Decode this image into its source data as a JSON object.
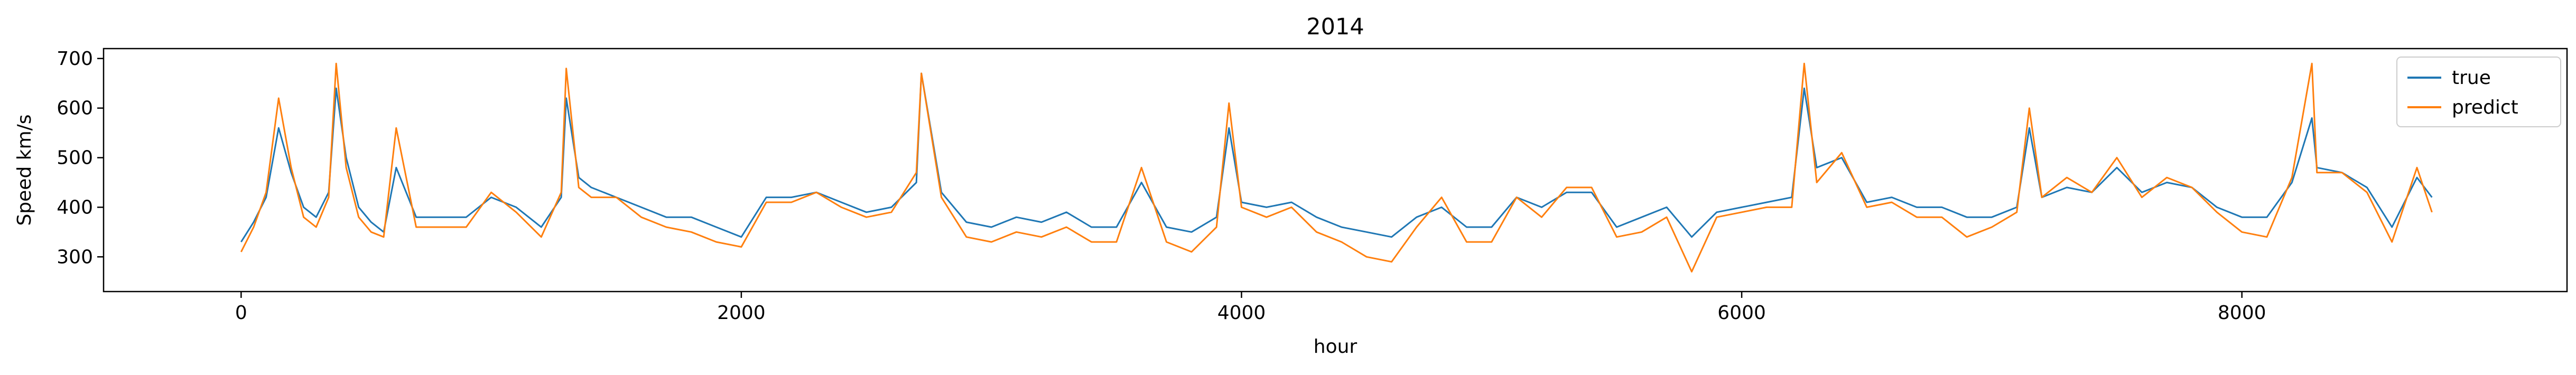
{
  "chart_data": {
    "type": "line",
    "title": "2014",
    "xlabel": "hour",
    "ylabel": "Speed km/s",
    "xlim": [
      -550,
      9300
    ],
    "ylim": [
      230,
      720
    ],
    "xticks": [
      0,
      2000,
      4000,
      6000,
      8000
    ],
    "xtick_labels": [
      "0",
      "2000",
      "4000",
      "6000",
      "8000"
    ],
    "yticks": [
      300,
      400,
      500,
      600,
      700
    ],
    "ytick_labels": [
      "300",
      "400",
      "500",
      "600",
      "700"
    ],
    "grid": false,
    "legend_position": "top-right",
    "series": [
      {
        "name": "true",
        "color": "#1f77b4",
        "x": [
          0,
          50,
          100,
          150,
          200,
          250,
          300,
          350,
          380,
          420,
          470,
          520,
          570,
          620,
          700,
          800,
          900,
          1000,
          1100,
          1200,
          1280,
          1300,
          1350,
          1400,
          1500,
          1600,
          1700,
          1800,
          1900,
          2000,
          2100,
          2200,
          2300,
          2400,
          2500,
          2600,
          2700,
          2720,
          2800,
          2900,
          3000,
          3100,
          3200,
          3300,
          3400,
          3500,
          3600,
          3700,
          3800,
          3900,
          3950,
          4000,
          4100,
          4200,
          4300,
          4400,
          4500,
          4600,
          4700,
          4800,
          4900,
          5000,
          5100,
          5200,
          5300,
          5400,
          5500,
          5600,
          5700,
          5800,
          5900,
          6000,
          6100,
          6200,
          6250,
          6300,
          6400,
          6500,
          6600,
          6700,
          6800,
          6900,
          7000,
          7100,
          7150,
          7200,
          7300,
          7400,
          7500,
          7600,
          7700,
          7800,
          7900,
          8000,
          8100,
          8200,
          8280,
          8300,
          8400,
          8500,
          8600,
          8700,
          8760
        ],
        "y": [
          330,
          370,
          420,
          560,
          470,
          400,
          380,
          430,
          640,
          500,
          400,
          370,
          350,
          480,
          380,
          380,
          380,
          420,
          400,
          360,
          420,
          620,
          460,
          440,
          420,
          400,
          380,
          380,
          360,
          340,
          420,
          420,
          430,
          410,
          390,
          400,
          450,
          670,
          430,
          370,
          360,
          380,
          370,
          390,
          360,
          360,
          450,
          360,
          350,
          380,
          560,
          410,
          400,
          410,
          380,
          360,
          350,
          340,
          380,
          400,
          360,
          360,
          420,
          400,
          430,
          430,
          360,
          380,
          400,
          340,
          390,
          400,
          410,
          420,
          640,
          480,
          500,
          410,
          420,
          400,
          400,
          380,
          380,
          400,
          560,
          420,
          440,
          430,
          480,
          430,
          450,
          440,
          400,
          380,
          380,
          450,
          580,
          480,
          470,
          440,
          360,
          460,
          420
        ]
      },
      {
        "name": "predict",
        "color": "#ff7f0e",
        "x": [
          0,
          50,
          100,
          150,
          200,
          250,
          300,
          350,
          380,
          420,
          470,
          520,
          570,
          620,
          700,
          800,
          900,
          1000,
          1100,
          1200,
          1280,
          1300,
          1350,
          1400,
          1500,
          1600,
          1700,
          1800,
          1900,
          2000,
          2100,
          2200,
          2300,
          2400,
          2500,
          2600,
          2700,
          2720,
          2800,
          2900,
          3000,
          3100,
          3200,
          3300,
          3400,
          3500,
          3600,
          3700,
          3800,
          3900,
          3950,
          4000,
          4100,
          4200,
          4300,
          4400,
          4500,
          4600,
          4700,
          4800,
          4900,
          5000,
          5100,
          5200,
          5300,
          5400,
          5500,
          5600,
          5700,
          5800,
          5900,
          6000,
          6100,
          6200,
          6250,
          6300,
          6400,
          6500,
          6600,
          6700,
          6800,
          6900,
          7000,
          7100,
          7150,
          7200,
          7300,
          7400,
          7500,
          7600,
          7700,
          7800,
          7900,
          8000,
          8100,
          8200,
          8280,
          8300,
          8400,
          8500,
          8600,
          8700,
          8760
        ],
        "y": [
          310,
          360,
          430,
          620,
          480,
          380,
          360,
          420,
          690,
          480,
          380,
          350,
          340,
          560,
          360,
          360,
          360,
          430,
          390,
          340,
          430,
          680,
          440,
          420,
          420,
          380,
          360,
          350,
          330,
          320,
          410,
          410,
          430,
          400,
          380,
          390,
          470,
          670,
          420,
          340,
          330,
          350,
          340,
          360,
          330,
          330,
          480,
          330,
          310,
          360,
          610,
          400,
          380,
          400,
          350,
          330,
          300,
          290,
          360,
          420,
          330,
          330,
          420,
          380,
          440,
          440,
          340,
          350,
          380,
          270,
          380,
          390,
          400,
          400,
          690,
          450,
          510,
          400,
          410,
          380,
          380,
          340,
          360,
          390,
          600,
          420,
          460,
          430,
          500,
          420,
          460,
          440,
          390,
          350,
          340,
          460,
          690,
          470,
          470,
          430,
          330,
          480,
          390
        ]
      }
    ]
  }
}
